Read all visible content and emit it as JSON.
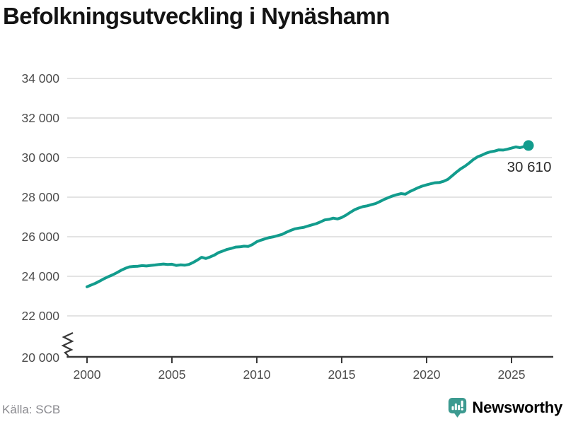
{
  "title": "Befolkningsutveckling i Nynäshamn",
  "source": "Källa: SCB",
  "branding": {
    "name": "Newsworthy",
    "icon": "newsworthy-speech-bubble-bar-chart-icon",
    "color": "#3C9A90"
  },
  "colors": {
    "line": "#129C8D",
    "marker": "#129C8D",
    "grid": "#E3E3E3",
    "axis": "#383838",
    "tick_text": "#4C4C4C",
    "annotation_text": "#2B2B2B",
    "title_text": "#141414",
    "source_text": "#8A8A8F"
  },
  "chart_data": {
    "type": "line",
    "title": "Befolkningsutveckling i Nynäshamn",
    "xlabel": "",
    "ylabel": "",
    "xlim": [
      1998.8,
      2027.5
    ],
    "ylim": [
      20000,
      34000
    ],
    "grid": "horizontal",
    "y_axis_break": true,
    "legend": "none",
    "x_ticks": [
      {
        "value": 2000,
        "label": "2000"
      },
      {
        "value": 2005,
        "label": "2005"
      },
      {
        "value": 2010,
        "label": "2010"
      },
      {
        "value": 2015,
        "label": "2015"
      },
      {
        "value": 2020,
        "label": "2020"
      },
      {
        "value": 2025,
        "label": "2025"
      }
    ],
    "y_ticks": [
      {
        "value": 34000,
        "label": "34 000"
      },
      {
        "value": 32000,
        "label": "32 000"
      },
      {
        "value": 30000,
        "label": "30 000"
      },
      {
        "value": 28000,
        "label": "28 000"
      },
      {
        "value": 26000,
        "label": "26 000"
      },
      {
        "value": 24000,
        "label": "24 000"
      },
      {
        "value": 22000,
        "label": "22 000"
      },
      {
        "value": 20000,
        "label": "20 000"
      }
    ],
    "end_label": {
      "text": "30 610",
      "value": 30610
    },
    "series": [
      {
        "name": "Befolkning i Nynäshamn",
        "x_start": 2000,
        "x_step": 0.25,
        "values": [
          23470,
          23560,
          23650,
          23760,
          23880,
          23980,
          24070,
          24180,
          24300,
          24400,
          24480,
          24500,
          24510,
          24540,
          24520,
          24550,
          24570,
          24600,
          24620,
          24600,
          24610,
          24550,
          24580,
          24560,
          24600,
          24700,
          24820,
          24960,
          24900,
          24980,
          25070,
          25200,
          25280,
          25360,
          25410,
          25480,
          25490,
          25520,
          25510,
          25610,
          25750,
          25830,
          25900,
          25960,
          26000,
          26060,
          26120,
          26230,
          26320,
          26400,
          26440,
          26470,
          26540,
          26600,
          26660,
          26750,
          26850,
          26880,
          26940,
          26900,
          26970,
          27090,
          27230,
          27360,
          27450,
          27520,
          27560,
          27620,
          27680,
          27780,
          27890,
          27980,
          28060,
          28130,
          28180,
          28150,
          28280,
          28380,
          28480,
          28560,
          28620,
          28680,
          28730,
          28740,
          28800,
          28900,
          29080,
          29260,
          29430,
          29560,
          29720,
          29900,
          30040,
          30120,
          30220,
          30290,
          30330,
          30390,
          30380,
          30420,
          30480,
          30540,
          30500,
          30560,
          30610
        ]
      }
    ]
  }
}
